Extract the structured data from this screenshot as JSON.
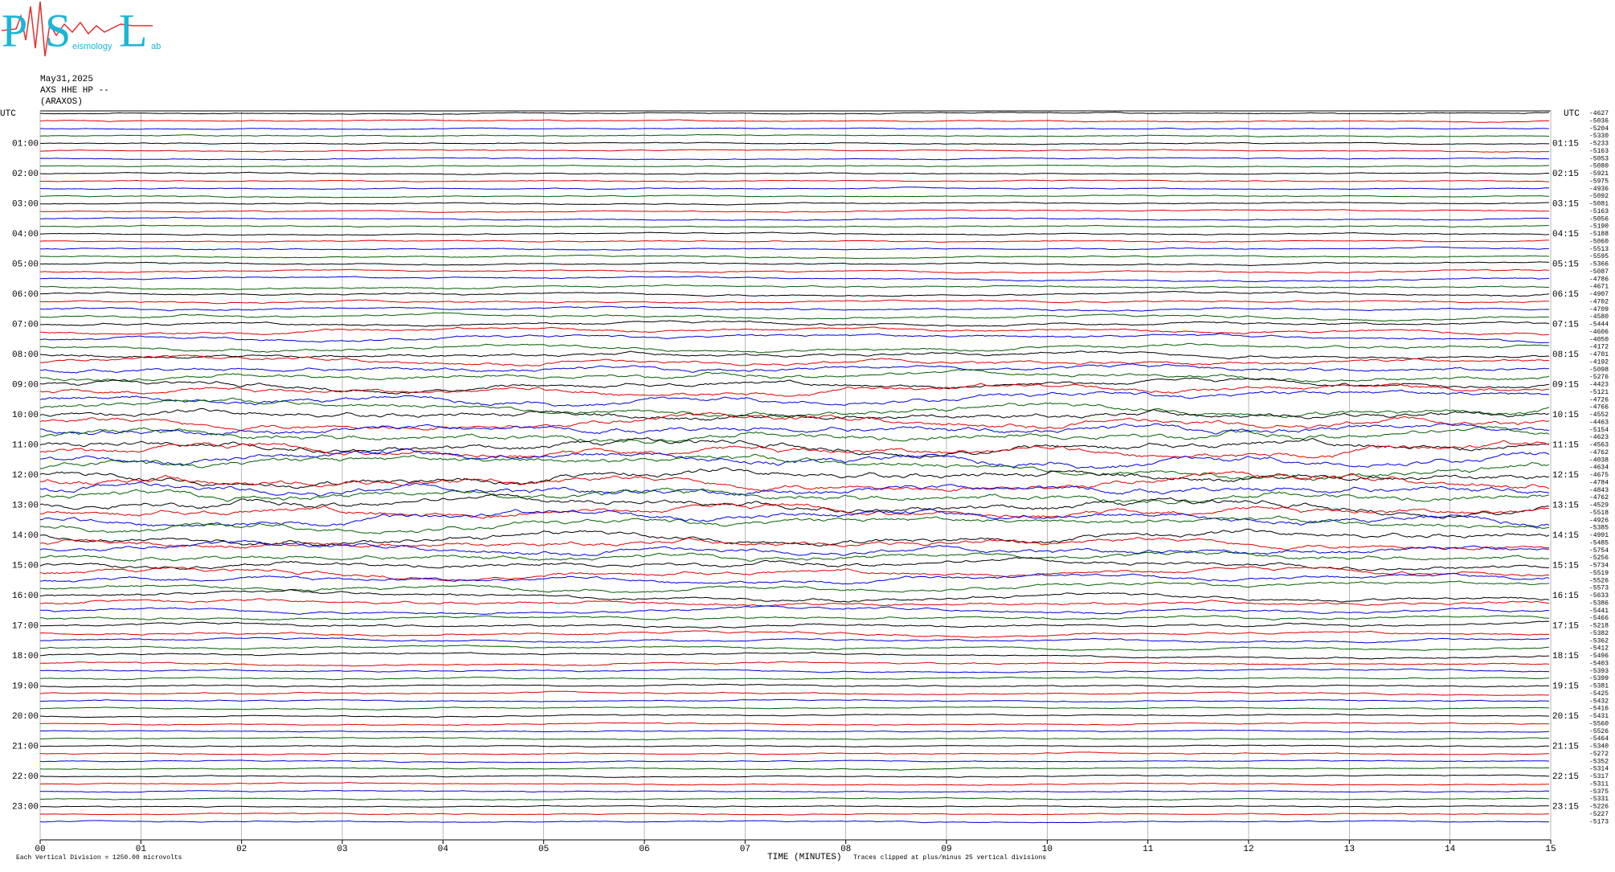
{
  "logo": {
    "letters": [
      "P",
      "S",
      "L"
    ],
    "words": [
      "eismology",
      "ab"
    ]
  },
  "header": {
    "date": "May31,2025",
    "channel": "AXS HHE HP --",
    "station": "(ARAXOS)"
  },
  "left_label": "UTC",
  "right_label": "UTC",
  "hours_left": [
    "01:00",
    "02:00",
    "03:00",
    "04:00",
    "05:00",
    "06:00",
    "07:00",
    "08:00",
    "09:00",
    "10:00",
    "11:00",
    "12:00",
    "13:00",
    "14:00",
    "15:00",
    "16:00",
    "17:00",
    "18:00",
    "19:00",
    "20:00",
    "21:00",
    "22:00",
    "23:00"
  ],
  "hours_right": [
    "01:15",
    "02:15",
    "03:15",
    "04:15",
    "05:15",
    "06:15",
    "07:15",
    "08:15",
    "09:15",
    "10:15",
    "11:15",
    "12:15",
    "13:15",
    "14:15",
    "15:15",
    "16:15",
    "17:15",
    "18:15",
    "19:15",
    "20:15",
    "21:15",
    "22:15",
    "23:15"
  ],
  "trace_colors": [
    "#000000",
    "#e00000",
    "#0000e0",
    "#006000"
  ],
  "trace_labels": [
    "-4627",
    "-5036",
    "-5204",
    "-5330",
    "-5233",
    "-5163",
    "-5053",
    "-5080",
    "-5921",
    "-5975",
    "-4936",
    "-5092",
    "-5081",
    "-5163",
    "-5056",
    "-5190",
    "-5188",
    "-5060",
    "-5513",
    "-5595",
    "-5366",
    "-5087",
    "-4786",
    "-4671",
    "-4907",
    "-4702",
    "-4709",
    "-4580",
    "-5444",
    "-4606",
    "-4050",
    "-4172",
    "-4701",
    "-4192",
    "-5098",
    "-5276",
    "-4423",
    "-5121",
    "-4726",
    "-4766",
    "-4552",
    "-4463",
    "-5154",
    "-4623",
    "-4563",
    "-4762",
    "-4038",
    "-4634",
    "-4675",
    "-4784",
    "-4843",
    "-4762",
    "-4529",
    "-5518",
    "-4926",
    "-5385",
    "-4991",
    "-5485",
    "-5754",
    "-5256",
    "-5734",
    "-5519",
    "-5526",
    "-5573",
    "-5633",
    "-5386",
    "-5441",
    "-5466",
    "-5218",
    "-5382",
    "-5362",
    "-5412",
    "-5496",
    "-5403",
    "-5393",
    "-5399",
    "-5381",
    "-5425",
    "-5432",
    "-5416",
    "-5431",
    "-5560",
    "-5526",
    "-5464",
    "-5340",
    "-5272",
    "-5352",
    "-5314",
    "-5317",
    "-5311",
    "-5375",
    "-5331",
    "-5226",
    "-5227",
    "-5173"
  ],
  "x_ticks": [
    "00",
    "01",
    "02",
    "03",
    "04",
    "05",
    "06",
    "07",
    "08",
    "09",
    "10",
    "11",
    "12",
    "13",
    "14",
    "15"
  ],
  "footer": {
    "scale": "Each Vertical Division = 1250.00 microvolts",
    "x_title": "TIME (MINUTES)",
    "clip": "Traces clipped at plus/minus 25 vertical divisions"
  }
}
